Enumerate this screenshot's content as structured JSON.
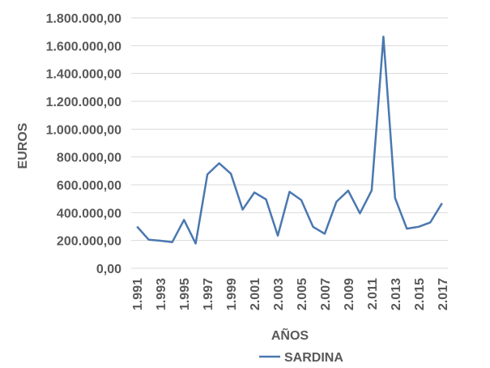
{
  "chart_data": {
    "type": "line",
    "title": "",
    "xlabel": "AÑOS",
    "ylabel": "EUROS",
    "ylim": [
      0,
      1800000
    ],
    "yticks": [
      0,
      200000,
      400000,
      600000,
      800000,
      1000000,
      1200000,
      1400000,
      1600000,
      1800000
    ],
    "ytick_labels": [
      "0,00",
      "200.000,00",
      "400.000,00",
      "600.000,00",
      "800.000,00",
      "1.000.000,00",
      "1.200.000,00",
      "1.400.000,00",
      "1.600.000,00",
      "1.800.000,00"
    ],
    "xtick_labels": [
      "1.991",
      "1.993",
      "1.995",
      "1.997",
      "1.999",
      "2.001",
      "2.003",
      "2.005",
      "2.007",
      "2.009",
      "2.011",
      "2.013",
      "2.015",
      "2.017"
    ],
    "grid": true,
    "legend": "bottom",
    "x": [
      1991,
      1992,
      1993,
      1994,
      1995,
      1996,
      1997,
      1998,
      1999,
      2000,
      2001,
      2002,
      2003,
      2004,
      2005,
      2006,
      2007,
      2008,
      2009,
      2010,
      2011,
      2012,
      2013,
      2014,
      2015,
      2016,
      2017
    ],
    "series": [
      {
        "name": "SARDINA",
        "color": "#4a78b0",
        "values": [
          300000,
          205000,
          198000,
          188000,
          348000,
          178000,
          675000,
          755000,
          680000,
          422000,
          545000,
          495000,
          235000,
          550000,
          490000,
          298000,
          248000,
          478000,
          558000,
          395000,
          560000,
          1665000,
          505000,
          285000,
          298000,
          330000,
          468000
        ]
      }
    ]
  }
}
